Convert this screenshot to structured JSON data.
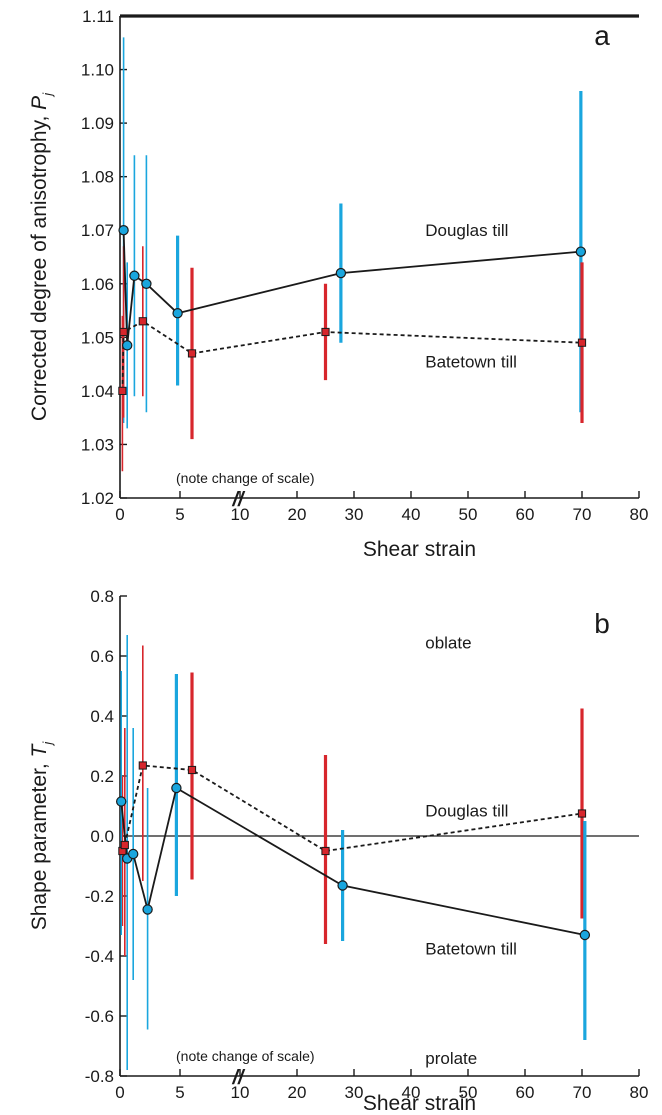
{
  "chart_data": [
    {
      "type": "scatter",
      "panel_label": "a",
      "xlabel": "Shear strain",
      "ylabel_main": "Corrected degree of anisotrophy, ",
      "ylabel_italic": "P",
      "ylabel_sub": "j",
      "note": "(note change of scale)",
      "break_mark": "//",
      "xlim": [
        0,
        80
      ],
      "ylim": [
        1.02,
        1.11
      ],
      "x_ticks": [
        0,
        5,
        10,
        20,
        30,
        40,
        50,
        60,
        70,
        80
      ],
      "x_tick_labels": [
        "0",
        "5",
        "10",
        "20",
        "30",
        "40",
        "50",
        "60",
        "70",
        "80"
      ],
      "y_ticks": [
        1.02,
        1.03,
        1.04,
        1.05,
        1.06,
        1.07,
        1.08,
        1.09,
        1.1,
        1.11
      ],
      "y_tick_labels": [
        "1.02",
        "1.03",
        "1.04",
        "1.05",
        "1.06",
        "1.07",
        "1.08",
        "1.09",
        "1.10",
        "1.11"
      ],
      "series": [
        {
          "name": "Douglas till",
          "color": "#1aa6de",
          "marker": "circle",
          "line": "solid",
          "points": [
            {
              "x": 0.3,
              "y": 1.07,
              "lo": 1.034,
              "hi": 1.106
            },
            {
              "x": 0.6,
              "y": 1.0485,
              "lo": 1.033,
              "hi": 1.064
            },
            {
              "x": 1.2,
              "y": 1.0615,
              "lo": 1.039,
              "hi": 1.084
            },
            {
              "x": 2.2,
              "y": 1.06,
              "lo": 1.036,
              "hi": 1.084
            },
            {
              "x": 4.8,
              "y": 1.0545,
              "lo": 1.041,
              "hi": 1.069
            },
            {
              "x": 27.7,
              "y": 1.062,
              "lo": 1.049,
              "hi": 1.075
            },
            {
              "x": 69.8,
              "y": 1.066,
              "lo": 1.036,
              "hi": 1.096
            }
          ]
        },
        {
          "name": "Batetown till",
          "color": "#d7262c",
          "marker": "square",
          "line": "dashed",
          "points": [
            {
              "x": 0.2,
              "y": 1.04,
              "lo": 1.025,
              "hi": 1.054
            },
            {
              "x": 0.3,
              "y": 1.051,
              "lo": 1.035,
              "hi": 1.067
            },
            {
              "x": 1.9,
              "y": 1.053,
              "lo": 1.039,
              "hi": 1.067
            },
            {
              "x": 6.0,
              "y": 1.047,
              "lo": 1.031,
              "hi": 1.063
            },
            {
              "x": 25.0,
              "y": 1.051,
              "lo": 1.042,
              "hi": 1.06
            },
            {
              "x": 70.0,
              "y": 1.049,
              "lo": 1.034,
              "hi": 1.064
            }
          ]
        }
      ],
      "annotations": [
        {
          "text": "Douglas till",
          "x": 42.5,
          "y": 1.07
        },
        {
          "text": "Batetown till",
          "x": 42.5,
          "y": 1.0455
        }
      ]
    },
    {
      "type": "scatter",
      "panel_label": "b",
      "xlabel": "Shear strain",
      "ylabel_main": "Shape parameter, ",
      "ylabel_italic": "T",
      "ylabel_sub": "j",
      "note": "(note change of scale)",
      "break_mark": "//",
      "xlim": [
        0,
        80
      ],
      "ylim": [
        -0.8,
        0.8
      ],
      "x_ticks": [
        0,
        5,
        10,
        20,
        30,
        40,
        50,
        60,
        70,
        80
      ],
      "x_tick_labels": [
        "0",
        "5",
        "10",
        "20",
        "30",
        "40",
        "50",
        "60",
        "70",
        "80"
      ],
      "y_ticks": [
        -0.8,
        -0.6,
        -0.4,
        -0.2,
        0.0,
        0.2,
        0.4,
        0.6,
        0.8
      ],
      "y_tick_labels": [
        "-0.8",
        "-0.6",
        "-0.4",
        "-0.2",
        "0.0",
        "0.2",
        "0.4",
        "0.6",
        "0.8"
      ],
      "zero_line": 0.0,
      "series": [
        {
          "name": "Douglas till",
          "color": "#d7262c",
          "marker": "square",
          "line": "dashed",
          "points": [
            {
              "x": 0.2,
              "y": -0.05,
              "lo": -0.3,
              "hi": 0.2
            },
            {
              "x": 0.4,
              "y": -0.03,
              "lo": -0.4,
              "hi": 0.36
            },
            {
              "x": 1.9,
              "y": 0.235,
              "lo": -0.15,
              "hi": 0.635
            },
            {
              "x": 6.0,
              "y": 0.22,
              "lo": -0.145,
              "hi": 0.545
            },
            {
              "x": 25.0,
              "y": -0.05,
              "lo": -0.36,
              "hi": 0.27
            },
            {
              "x": 70.0,
              "y": 0.075,
              "lo": -0.275,
              "hi": 0.425
            }
          ]
        },
        {
          "name": "Batetown till",
          "color": "#1aa6de",
          "marker": "circle",
          "line": "solid",
          "points": [
            {
              "x": 0.1,
              "y": 0.115,
              "lo": -0.33,
              "hi": 0.55
            },
            {
              "x": 0.6,
              "y": -0.075,
              "lo": -0.78,
              "hi": 0.67
            },
            {
              "x": 1.1,
              "y": -0.06,
              "lo": -0.48,
              "hi": 0.36
            },
            {
              "x": 2.3,
              "y": -0.245,
              "lo": -0.645,
              "hi": 0.16
            },
            {
              "x": 4.7,
              "y": 0.16,
              "lo": -0.2,
              "hi": 0.54
            },
            {
              "x": 28.0,
              "y": -0.165,
              "lo": -0.35,
              "hi": 0.02
            },
            {
              "x": 70.5,
              "y": -0.33,
              "lo": -0.68,
              "hi": 0.05
            }
          ]
        }
      ],
      "annotations": [
        {
          "text": "oblate",
          "x": 42.5,
          "y": 0.645
        },
        {
          "text": "Douglas till",
          "x": 42.5,
          "y": 0.085
        },
        {
          "text": "Batetown till",
          "x": 42.5,
          "y": -0.375
        },
        {
          "text": "prolate",
          "x": 42.5,
          "y": -0.74
        }
      ]
    }
  ]
}
